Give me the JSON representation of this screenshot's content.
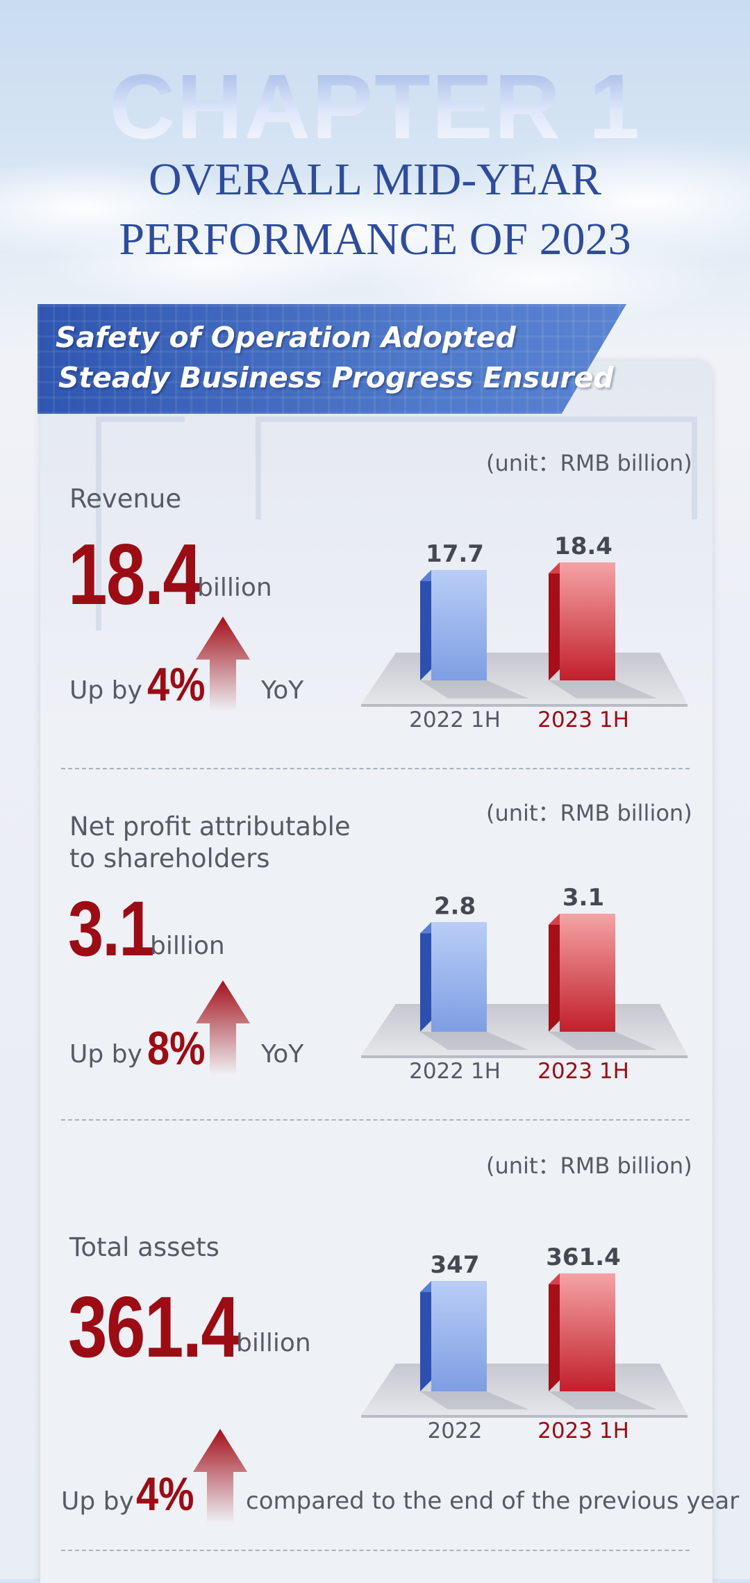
{
  "header": {
    "chapter": "CHAPTER 1",
    "title_line1": "OVERALL MID-YEAR",
    "title_line2": "PERFORMANCE OF 2023"
  },
  "banner": {
    "line1": "Safety of Operation Adopted",
    "line2": "Steady Business Progress Ensured"
  },
  "colors": {
    "bar_prev": "#3b63c8",
    "bar_curr": "#c0141c",
    "accent": "#9c0c14"
  },
  "sections": [
    {
      "label": "Revenue",
      "value": "18.4",
      "unit": "billion",
      "change_prefix": "Up by",
      "change_pct": "4%",
      "change_suffix": "YoY",
      "unit_note": "(unit：RMB billion)"
    },
    {
      "label": "Net profit attributable to shareholders",
      "label_line1": "Net profit attributable",
      "label_line2": "to shareholders",
      "value": "3.1",
      "unit": "billion",
      "change_prefix": "Up by",
      "change_pct": "8%",
      "change_suffix": "YoY",
      "unit_note": "(unit：RMB billion)"
    },
    {
      "label": "Total assets",
      "value": "361.4",
      "unit": "billion",
      "change_prefix": "Up by",
      "change_pct": "4%",
      "change_suffix": "compared to the end of the previous year",
      "unit_note": "(unit：RMB billion)"
    }
  ],
  "chart_data": [
    {
      "type": "bar",
      "categories": [
        "2022 1H",
        "2023 1H"
      ],
      "values": [
        17.7,
        18.4
      ],
      "value_labels": [
        "17.7",
        "18.4"
      ]
    },
    {
      "type": "bar",
      "categories": [
        "2022 1H",
        "2023 1H"
      ],
      "values": [
        2.8,
        3.1
      ],
      "value_labels": [
        "2.8",
        "3.1"
      ]
    },
    {
      "type": "bar",
      "categories": [
        "2022",
        "2023 1H"
      ],
      "values": [
        347,
        361.4
      ],
      "value_labels": [
        "347",
        "361.4"
      ]
    }
  ]
}
